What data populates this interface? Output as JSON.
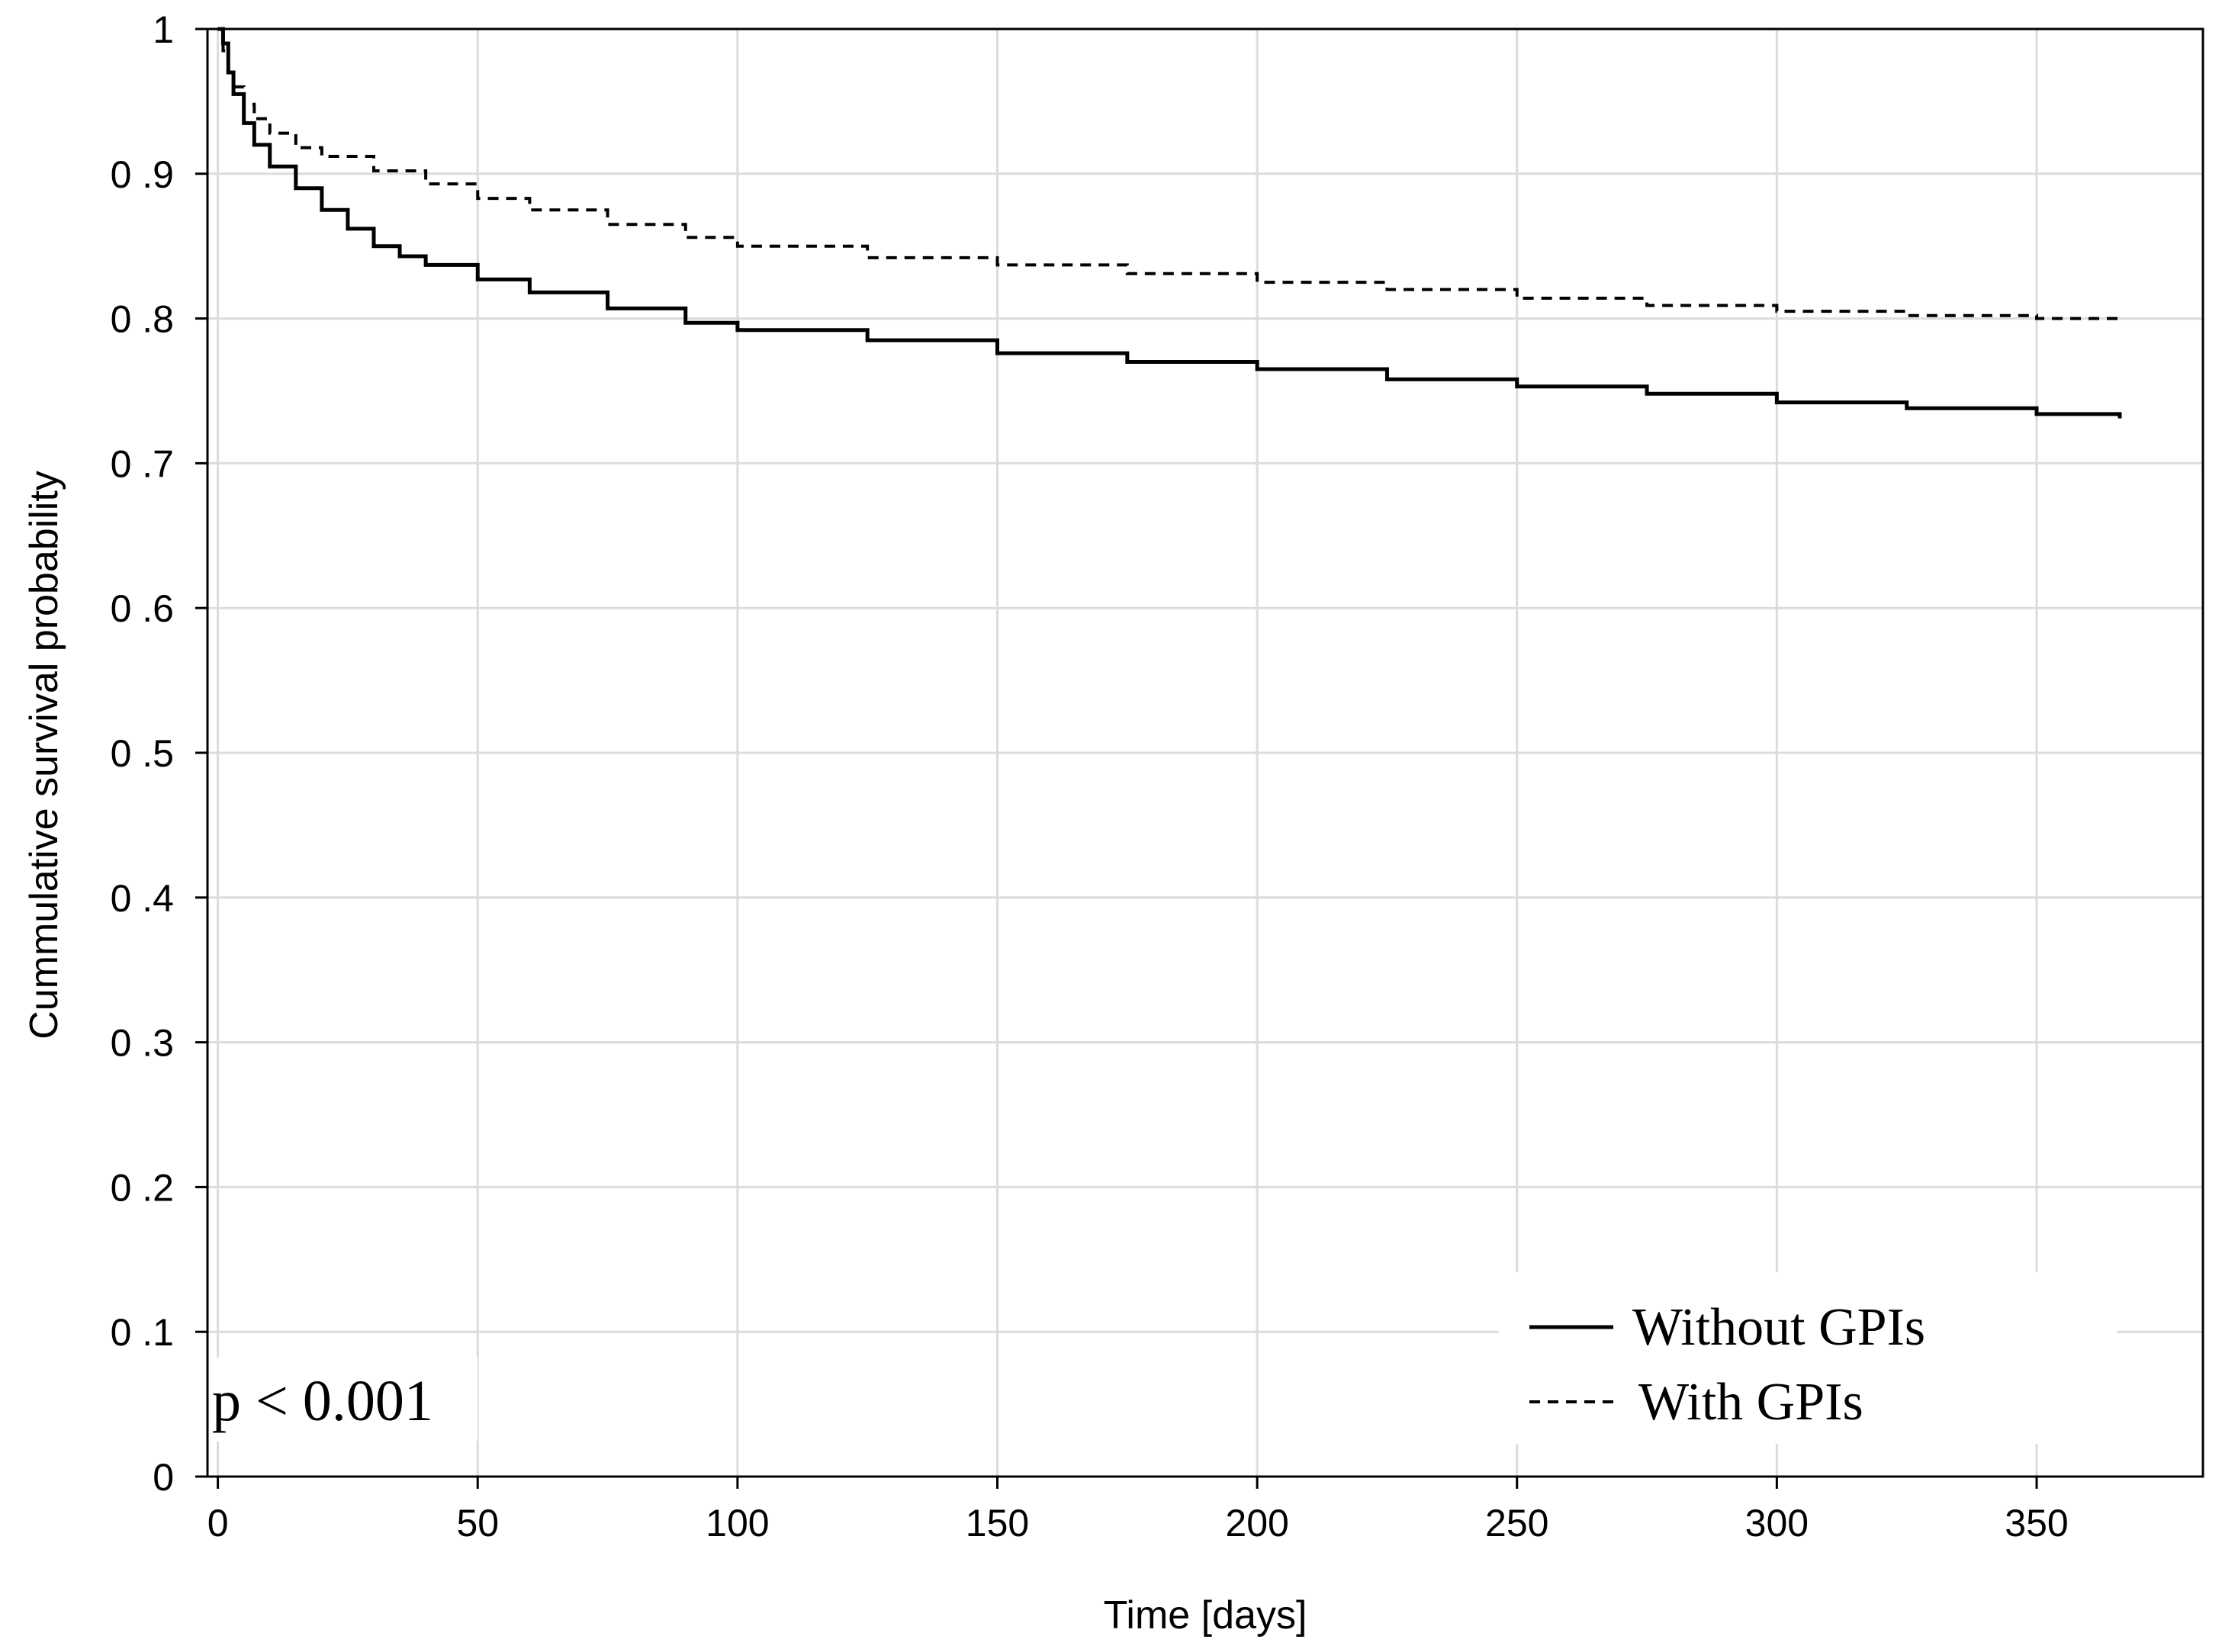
{
  "chart_data": {
    "type": "line",
    "title": "",
    "xlabel": "Time [days]",
    "ylabel": "Cummulative survival probability",
    "xlim": [
      -2,
      382
    ],
    "ylim": [
      0,
      1
    ],
    "grid": true,
    "x_ticks": [
      0,
      50,
      100,
      150,
      200,
      250,
      300,
      350
    ],
    "x_tick_labels": [
      "0",
      "50",
      "100",
      "150",
      "200",
      "250",
      "300",
      "350"
    ],
    "y_ticks": [
      0,
      0.1,
      0.2,
      0.3,
      0.4,
      0.5,
      0.6,
      0.7,
      0.8,
      0.9,
      1
    ],
    "y_tick_labels": [
      "0",
      "0 .1",
      "0 .2",
      "0 .3",
      "0 .4",
      "0 .5",
      "0 .6",
      "0 .7",
      "0 .8",
      "0 .9",
      "1"
    ],
    "legend_position": "bottom-right",
    "annotation": "p < 0.001",
    "series": [
      {
        "name": "Without GPIs",
        "style": "solid",
        "x": [
          0,
          1,
          2,
          3,
          5,
          7,
          10,
          15,
          20,
          25,
          30,
          35,
          40,
          50,
          60,
          75,
          90,
          100,
          125,
          150,
          175,
          200,
          225,
          250,
          275,
          300,
          325,
          350,
          366
        ],
        "y": [
          1.0,
          0.99,
          0.97,
          0.955,
          0.935,
          0.92,
          0.905,
          0.89,
          0.875,
          0.862,
          0.85,
          0.843,
          0.837,
          0.827,
          0.818,
          0.807,
          0.797,
          0.792,
          0.785,
          0.776,
          0.77,
          0.765,
          0.758,
          0.753,
          0.748,
          0.742,
          0.738,
          0.734,
          0.731
        ]
      },
      {
        "name": "With GPIs",
        "style": "dashed",
        "x": [
          0,
          1,
          2,
          3,
          5,
          7,
          10,
          15,
          20,
          30,
          40,
          50,
          60,
          75,
          90,
          100,
          125,
          150,
          175,
          200,
          225,
          250,
          275,
          300,
          325,
          350,
          366
        ],
        "y": [
          1.0,
          0.985,
          0.97,
          0.96,
          0.948,
          0.938,
          0.928,
          0.918,
          0.912,
          0.902,
          0.893,
          0.883,
          0.875,
          0.865,
          0.856,
          0.85,
          0.842,
          0.837,
          0.831,
          0.825,
          0.82,
          0.814,
          0.809,
          0.805,
          0.802,
          0.8,
          0.798
        ]
      }
    ]
  }
}
